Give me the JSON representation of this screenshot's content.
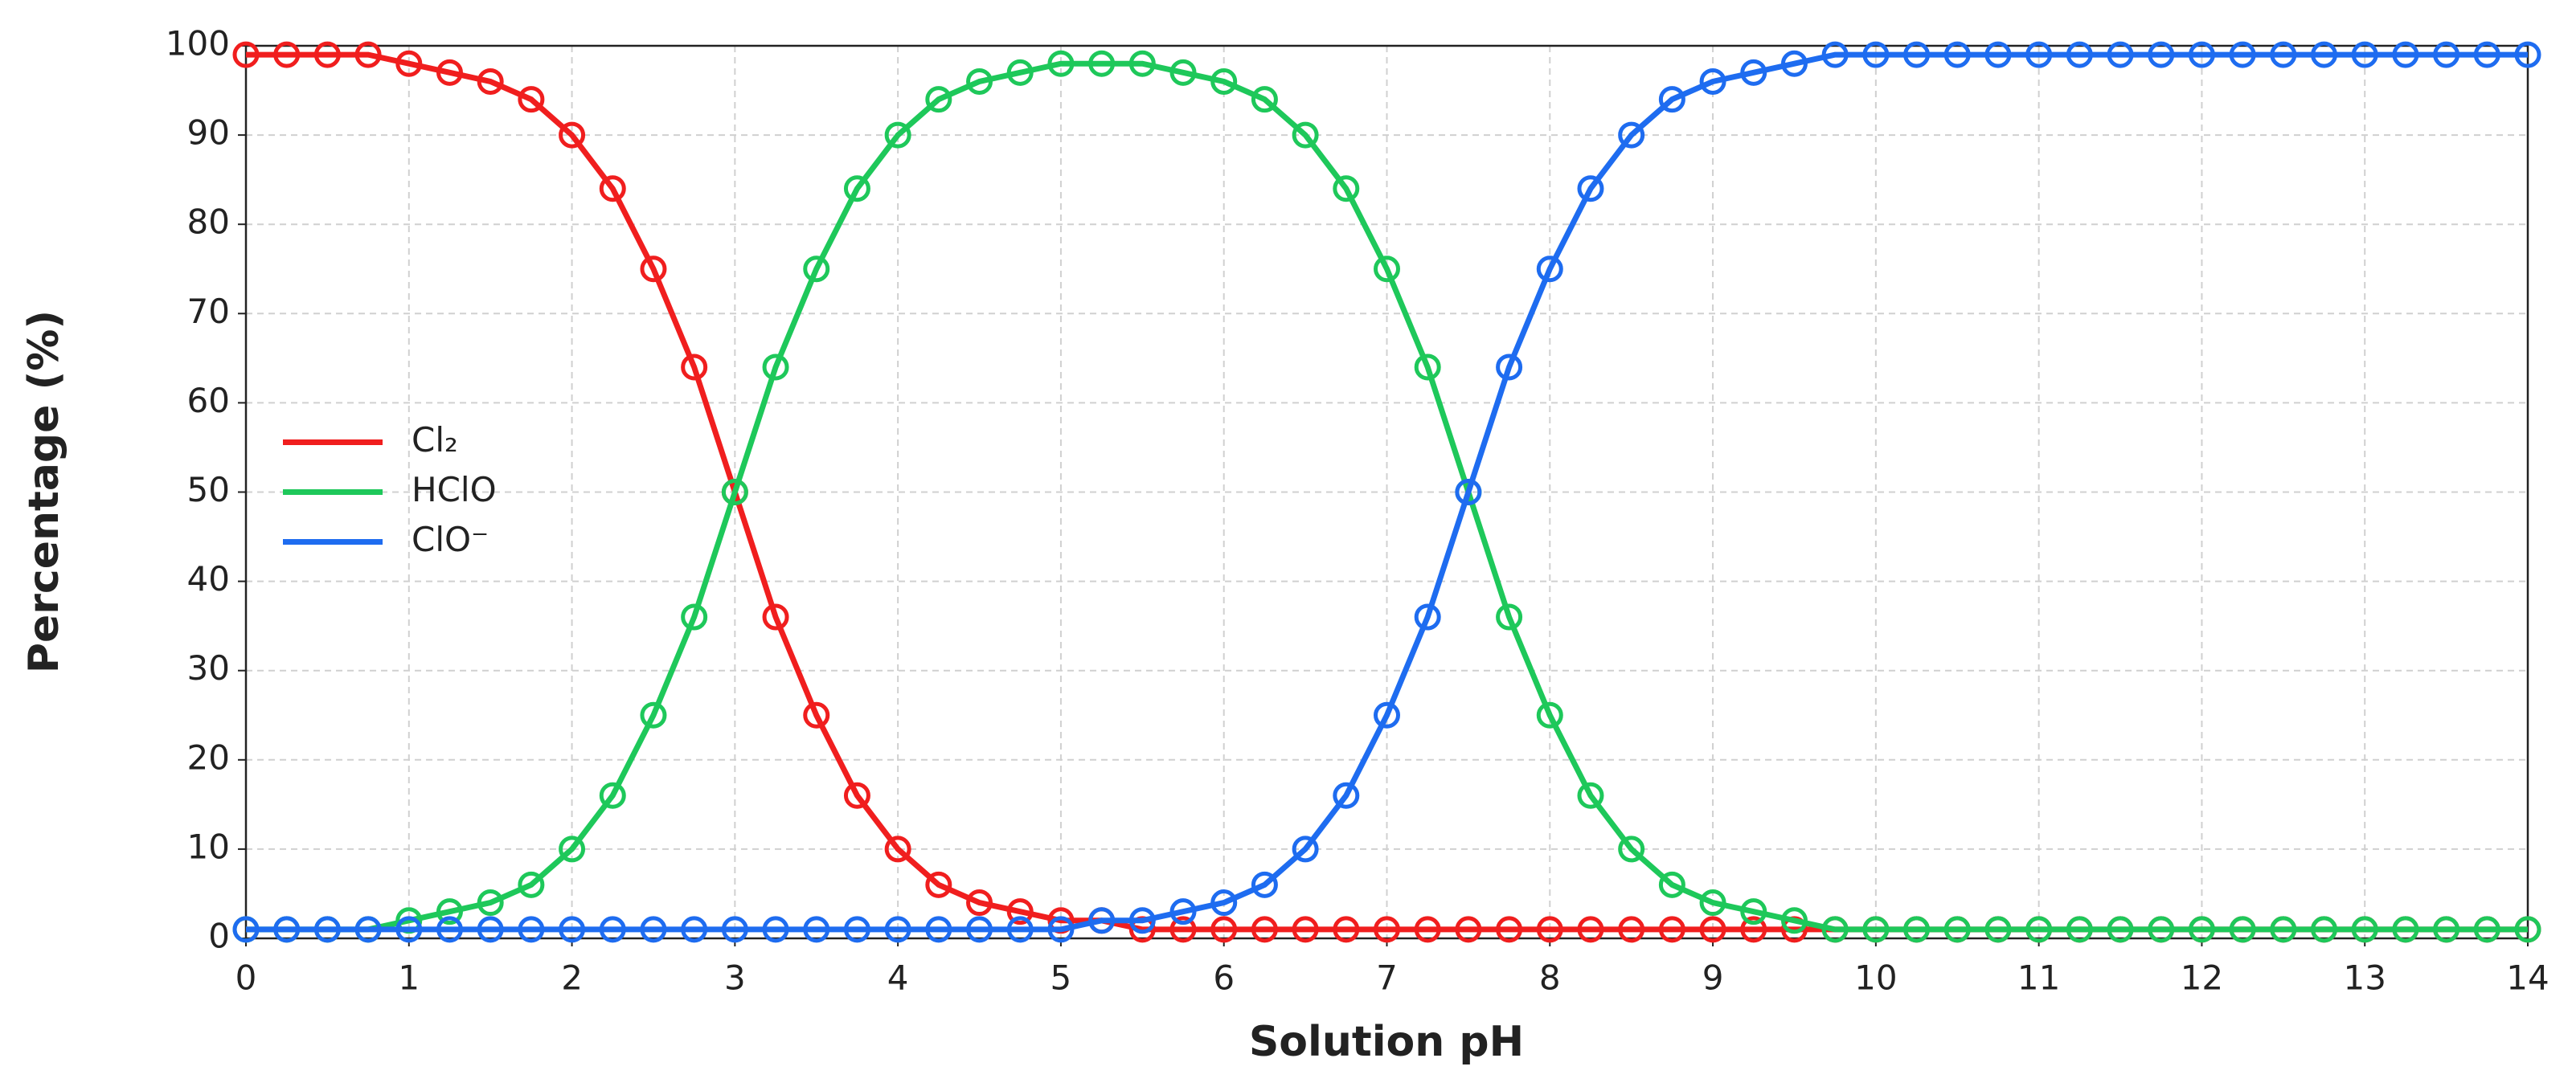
{
  "chart_data": {
    "type": "line",
    "xlabel": "Solution pH",
    "ylabel": "Percentage (%)",
    "x": [
      0,
      0.25,
      0.5,
      0.75,
      1,
      1.25,
      1.5,
      1.75,
      2,
      2.25,
      2.5,
      2.75,
      3,
      3.25,
      3.5,
      3.75,
      4,
      4.25,
      4.5,
      4.75,
      5,
      5.25,
      5.5,
      5.75,
      6,
      6.25,
      6.5,
      6.75,
      7,
      7.25,
      7.5,
      7.75,
      8,
      8.25,
      8.5,
      8.75,
      9,
      9.25,
      9.5,
      9.75,
      10,
      10.25,
      10.5,
      10.75,
      11,
      11.25,
      11.5,
      11.75,
      12,
      12.25,
      12.5,
      12.75,
      13,
      13.25,
      13.5,
      13.75,
      14
    ],
    "series": [
      {
        "name": "Cl₂",
        "color": "#f01e1e",
        "values": [
          99,
          99,
          99,
          99,
          98,
          97,
          96,
          94,
          90,
          84,
          75,
          64,
          50,
          36,
          25,
          16,
          10,
          6,
          4,
          3,
          2,
          2,
          1,
          1,
          1,
          1,
          1,
          1,
          1,
          1,
          1,
          1,
          1,
          1,
          1,
          1,
          1,
          1,
          1,
          1,
          1,
          1,
          1,
          1,
          1,
          1,
          1,
          1,
          1,
          1,
          1,
          1,
          1,
          1,
          1,
          1,
          1
        ]
      },
      {
        "name": "HClO",
        "color": "#1ec85a",
        "values": [
          1,
          1,
          1,
          1,
          2,
          3,
          4,
          6,
          10,
          16,
          25,
          36,
          50,
          64,
          75,
          84,
          90,
          94,
          96,
          97,
          98,
          98,
          98,
          97,
          96,
          94,
          90,
          84,
          75,
          64,
          50,
          36,
          25,
          16,
          10,
          6,
          4,
          3,
          2,
          1,
          1,
          1,
          1,
          1,
          1,
          1,
          1,
          1,
          1,
          1,
          1,
          1,
          1,
          1,
          1,
          1,
          1
        ]
      },
      {
        "name": "ClO⁻",
        "color": "#1e6cf0",
        "values": [
          1,
          1,
          1,
          1,
          1,
          1,
          1,
          1,
          1,
          1,
          1,
          1,
          1,
          1,
          1,
          1,
          1,
          1,
          1,
          1,
          1,
          2,
          2,
          3,
          4,
          6,
          10,
          16,
          25,
          36,
          50,
          64,
          75,
          84,
          90,
          94,
          96,
          97,
          98,
          99,
          99,
          99,
          99,
          99,
          99,
          99,
          99,
          99,
          99,
          99,
          99,
          99,
          99,
          99,
          99,
          99,
          99
        ]
      }
    ],
    "xlim": [
      0,
      14
    ],
    "ylim": [
      0,
      100
    ],
    "xticks": [
      0,
      1,
      2,
      3,
      4,
      5,
      6,
      7,
      8,
      9,
      10,
      11,
      12,
      13,
      14
    ],
    "yticks": [
      0,
      10,
      20,
      30,
      40,
      50,
      60,
      70,
      80,
      90,
      100
    ],
    "grid": true,
    "legend": "center left"
  }
}
